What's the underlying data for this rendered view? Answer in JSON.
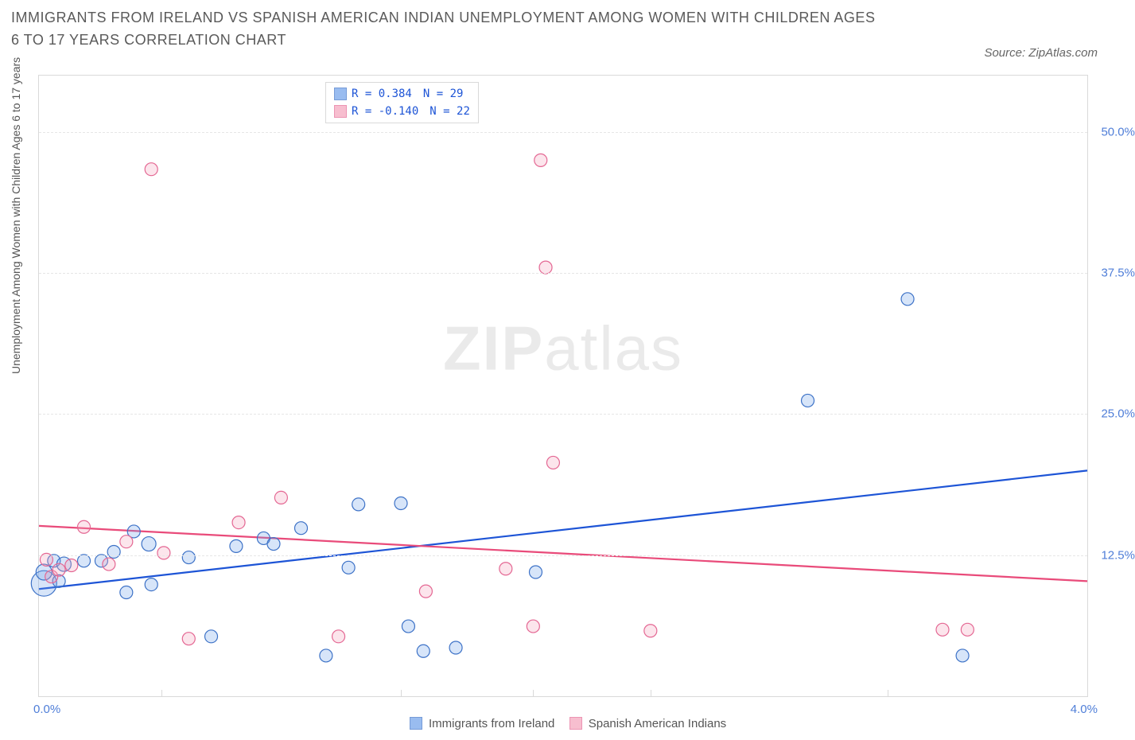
{
  "title": "IMMIGRANTS FROM IRELAND VS SPANISH AMERICAN INDIAN UNEMPLOYMENT AMONG WOMEN WITH CHILDREN AGES 6 TO 17 YEARS CORRELATION CHART",
  "source": "Source: ZipAtlas.com",
  "watermark_left": "ZIP",
  "watermark_right": "atlas",
  "ylabel": "Unemployment Among Women with Children Ages 6 to 17 years",
  "chart": {
    "type": "scatter",
    "background_color": "#ffffff",
    "grid_color": "#e6e6e6",
    "border_color": "#d9d9d9",
    "tick_color": "#d9d9d9",
    "axis_label_color": "#4f7ed8",
    "title_color": "#5a5a5a",
    "title_fontsize": 18,
    "label_fontsize": 14,
    "xlim": [
      0.0,
      4.2
    ],
    "ylim": [
      0.0,
      55.0
    ],
    "yticks": [
      12.5,
      25.0,
      37.5,
      50.0
    ],
    "ytick_labels": [
      "12.5%",
      "25.0%",
      "37.5%",
      "50.0%"
    ],
    "xtick_positions": [
      0.49,
      1.45,
      1.98,
      2.45,
      3.4
    ],
    "xlabel_min": "0.0%",
    "xlabel_max": "4.0%",
    "marker_base_radius": 8,
    "marker_stroke_width": 1.2,
    "marker_fill_opacity": 0.28,
    "line_width": 2.2,
    "series": [
      {
        "name": "Immigrants from Ireland",
        "label": "Immigrants from Ireland",
        "fill": "#6ea0ea",
        "stroke": "#3d72c7",
        "line_color": "#1d54d6",
        "r_text": "R =   0.384",
        "n_text": "N =   29",
        "trend": {
          "x1": 0.0,
          "y1": 9.5,
          "x2": 4.2,
          "y2": 20.0
        },
        "points": [
          {
            "x": 0.02,
            "y": 10.0,
            "r": 16
          },
          {
            "x": 0.02,
            "y": 11.0,
            "r": 10
          },
          {
            "x": 0.06,
            "y": 12.0,
            "r": 8
          },
          {
            "x": 0.08,
            "y": 10.2,
            "r": 8
          },
          {
            "x": 0.1,
            "y": 11.7,
            "r": 9
          },
          {
            "x": 0.18,
            "y": 12.0,
            "r": 8
          },
          {
            "x": 0.25,
            "y": 12.0,
            "r": 8
          },
          {
            "x": 0.3,
            "y": 12.8,
            "r": 8
          },
          {
            "x": 0.35,
            "y": 9.2,
            "r": 8
          },
          {
            "x": 0.38,
            "y": 14.6,
            "r": 8
          },
          {
            "x": 0.44,
            "y": 13.5,
            "r": 9
          },
          {
            "x": 0.45,
            "y": 9.9,
            "r": 8
          },
          {
            "x": 0.6,
            "y": 12.3,
            "r": 8
          },
          {
            "x": 0.69,
            "y": 5.3,
            "r": 8
          },
          {
            "x": 0.79,
            "y": 13.3,
            "r": 8
          },
          {
            "x": 0.9,
            "y": 14.0,
            "r": 8
          },
          {
            "x": 0.94,
            "y": 13.5,
            "r": 8
          },
          {
            "x": 1.05,
            "y": 14.9,
            "r": 8
          },
          {
            "x": 1.15,
            "y": 3.6,
            "r": 8
          },
          {
            "x": 1.24,
            "y": 11.4,
            "r": 8
          },
          {
            "x": 1.28,
            "y": 17.0,
            "r": 8
          },
          {
            "x": 1.45,
            "y": 17.1,
            "r": 8
          },
          {
            "x": 1.48,
            "y": 6.2,
            "r": 8
          },
          {
            "x": 1.54,
            "y": 4.0,
            "r": 8
          },
          {
            "x": 1.67,
            "y": 4.3,
            "r": 8
          },
          {
            "x": 1.99,
            "y": 11.0,
            "r": 8
          },
          {
            "x": 3.08,
            "y": 26.2,
            "r": 8
          },
          {
            "x": 3.48,
            "y": 35.2,
            "r": 8
          },
          {
            "x": 3.7,
            "y": 3.6,
            "r": 8
          }
        ]
      },
      {
        "name": "Spanish American Indians",
        "label": "Spanish American Indians",
        "fill": "#f4a3bc",
        "stroke": "#e46793",
        "line_color": "#e94b7a",
        "r_text": "R =   -0.140",
        "n_text": "N =   22",
        "trend": {
          "x1": 0.0,
          "y1": 15.1,
          "x2": 4.2,
          "y2": 10.2
        },
        "points": [
          {
            "x": 0.03,
            "y": 12.1,
            "r": 8
          },
          {
            "x": 0.05,
            "y": 10.6,
            "r": 8
          },
          {
            "x": 0.08,
            "y": 11.2,
            "r": 8
          },
          {
            "x": 0.13,
            "y": 11.6,
            "r": 8
          },
          {
            "x": 0.18,
            "y": 15.0,
            "r": 8
          },
          {
            "x": 0.28,
            "y": 11.7,
            "r": 8
          },
          {
            "x": 0.35,
            "y": 13.7,
            "r": 8
          },
          {
            "x": 0.45,
            "y": 46.7,
            "r": 8
          },
          {
            "x": 0.5,
            "y": 12.7,
            "r": 8
          },
          {
            "x": 0.6,
            "y": 5.1,
            "r": 8
          },
          {
            "x": 0.8,
            "y": 15.4,
            "r": 8
          },
          {
            "x": 0.97,
            "y": 17.6,
            "r": 8
          },
          {
            "x": 1.2,
            "y": 5.3,
            "r": 8
          },
          {
            "x": 1.55,
            "y": 9.3,
            "r": 8
          },
          {
            "x": 1.87,
            "y": 11.3,
            "r": 8
          },
          {
            "x": 2.01,
            "y": 47.5,
            "r": 8
          },
          {
            "x": 2.03,
            "y": 38.0,
            "r": 8
          },
          {
            "x": 1.98,
            "y": 6.2,
            "r": 8
          },
          {
            "x": 2.06,
            "y": 20.7,
            "r": 8
          },
          {
            "x": 2.45,
            "y": 5.8,
            "r": 8
          },
          {
            "x": 3.62,
            "y": 5.9,
            "r": 8
          },
          {
            "x": 3.72,
            "y": 5.9,
            "r": 8
          }
        ]
      }
    ]
  },
  "legend_color_text": "#1d54d6"
}
